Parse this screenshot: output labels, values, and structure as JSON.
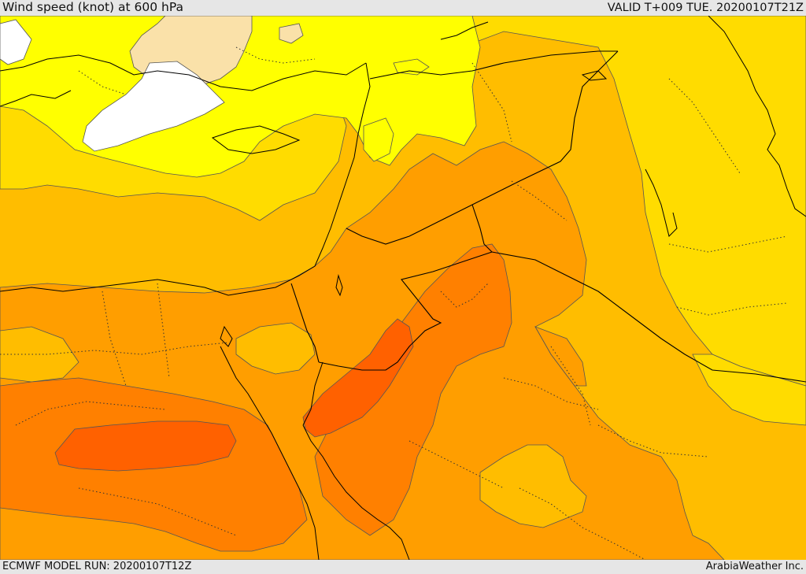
{
  "header": {
    "title": "Wind speed (knot) at 600 hPa",
    "valid_time": "VALID T+009 TUE. 20200107T21Z"
  },
  "footer": {
    "model_run": "ECMWF MODEL RUN: 20200107T12Z",
    "credit": "ArabiaWeather Inc."
  },
  "map": {
    "fill_colors": {
      "land_uncolored": "#ffffff",
      "band_1": "#fae1a9",
      "band_2": "#ffff00",
      "band_3": "#ffdc00",
      "band_4": "#ffbd00",
      "band_5": "#ff9e00",
      "band_6": "#ff8000",
      "band_7": "#ff6100"
    },
    "line_colors": {
      "contour": "#555555",
      "coastline": "#000000",
      "border": "#000000",
      "province": "#333333"
    }
  }
}
